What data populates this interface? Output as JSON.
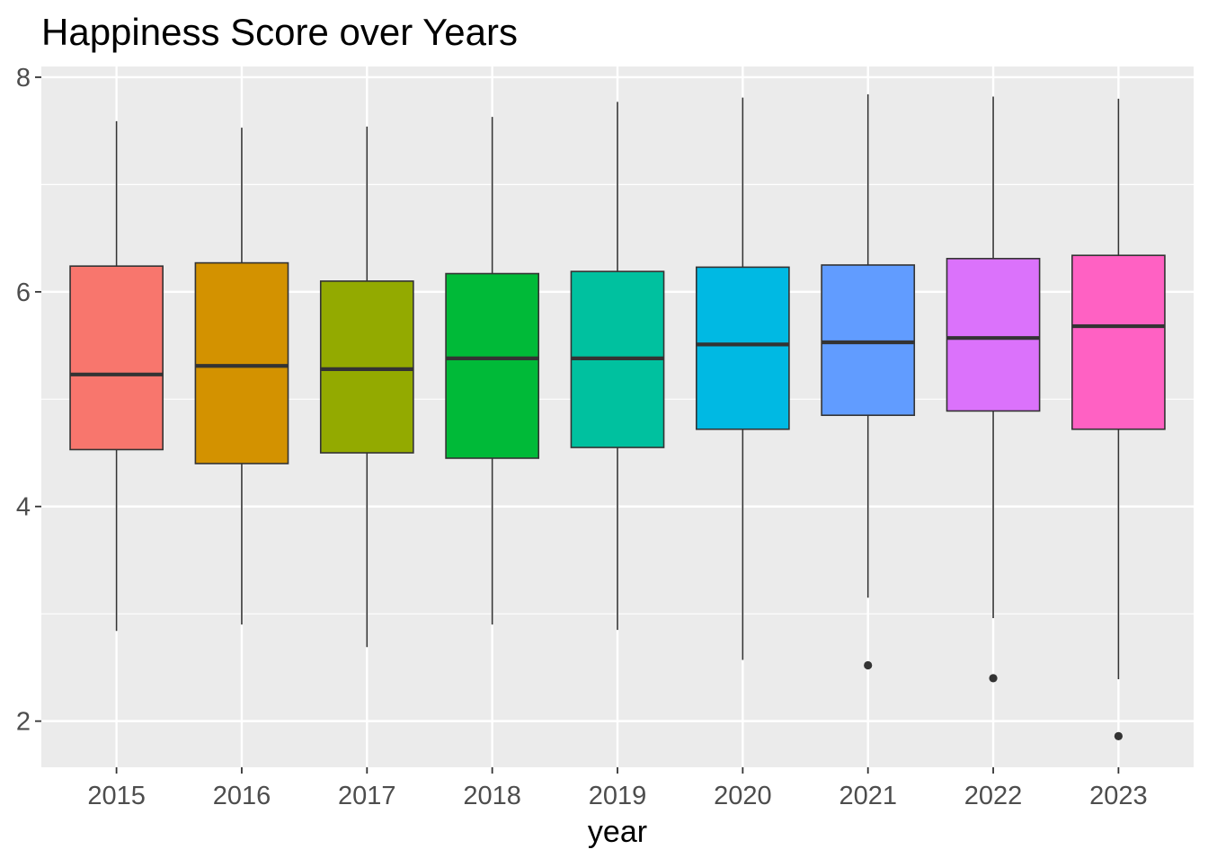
{
  "chart_data": {
    "type": "boxplot",
    "title": "Happiness Score over Years",
    "xlabel": "year",
    "ylabel": "",
    "ylim": [
      1.57,
      8.1
    ],
    "yticks": [
      2,
      4,
      6,
      8
    ],
    "grid": true,
    "legend": "none",
    "categories": [
      "2015",
      "2016",
      "2017",
      "2018",
      "2019",
      "2020",
      "2021",
      "2022",
      "2023"
    ],
    "series": [
      {
        "category": "2015",
        "color": "#F8766D",
        "whisker_low": 2.84,
        "q1": 4.53,
        "median": 5.23,
        "q3": 6.24,
        "whisker_high": 7.59,
        "outliers": []
      },
      {
        "category": "2016",
        "color": "#D39200",
        "whisker_low": 2.9,
        "q1": 4.4,
        "median": 5.31,
        "q3": 6.27,
        "whisker_high": 7.53,
        "outliers": []
      },
      {
        "category": "2017",
        "color": "#93AA00",
        "whisker_low": 2.69,
        "q1": 4.5,
        "median": 5.28,
        "q3": 6.1,
        "whisker_high": 7.54,
        "outliers": []
      },
      {
        "category": "2018",
        "color": "#00BA38",
        "whisker_low": 2.9,
        "q1": 4.45,
        "median": 5.38,
        "q3": 6.17,
        "whisker_high": 7.63,
        "outliers": []
      },
      {
        "category": "2019",
        "color": "#00C19F",
        "whisker_low": 2.85,
        "q1": 4.55,
        "median": 5.38,
        "q3": 6.19,
        "whisker_high": 7.77,
        "outliers": []
      },
      {
        "category": "2020",
        "color": "#00B9E3",
        "whisker_low": 2.57,
        "q1": 4.72,
        "median": 5.51,
        "q3": 6.23,
        "whisker_high": 7.81,
        "outliers": []
      },
      {
        "category": "2021",
        "color": "#619CFF",
        "whisker_low": 3.15,
        "q1": 4.85,
        "median": 5.53,
        "q3": 6.25,
        "whisker_high": 7.84,
        "outliers": [
          2.52
        ]
      },
      {
        "category": "2022",
        "color": "#DB72FB",
        "whisker_low": 2.96,
        "q1": 4.89,
        "median": 5.57,
        "q3": 6.31,
        "whisker_high": 7.82,
        "outliers": [
          2.4
        ]
      },
      {
        "category": "2023",
        "color": "#FF61C3",
        "whisker_low": 2.39,
        "q1": 4.72,
        "median": 5.68,
        "q3": 6.34,
        "whisker_high": 7.8,
        "outliers": [
          1.86
        ]
      }
    ]
  }
}
